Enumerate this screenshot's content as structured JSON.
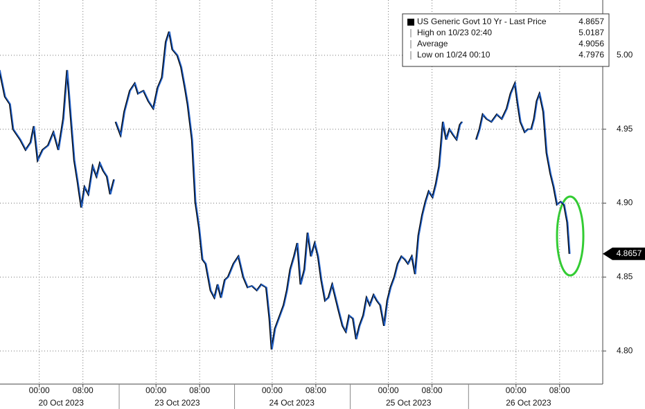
{
  "chart_data": {
    "type": "line",
    "x": [
      0,
      1.0,
      1.9,
      2.5,
      3.8,
      4.8,
      5.7,
      6.3,
      7.0,
      7.9,
      8.9,
      9.9,
      10.8,
      11.7,
      12.4,
      13.1,
      13.7,
      14.3,
      15.0,
      15.6,
      16.3,
      17.1,
      17.8,
      18.4,
      19.0,
      19.7,
      20.3,
      21.0,
      21.2,
      21.3,
      22.2,
      22.9,
      23.9,
      24.8,
      25.4,
      26.4,
      27.3,
      28.2,
      29.0,
      29.8,
      30.5,
      31.1,
      31.7,
      32.6,
      33.3,
      34.0,
      34.5,
      35.3,
      35.9,
      36.6,
      37.2,
      37.8,
      38.7,
      39.4,
      40.0,
      40.6,
      41.3,
      41.9,
      42.9,
      43.8,
      44.7,
      45.5,
      46.3,
      47.2,
      48.0,
      48.9,
      49.5,
      49.9,
      50.5,
      51.4,
      52.1,
      52.7,
      53.3,
      54.0,
      54.6,
      55.2,
      55.9,
      56.5,
      57.1,
      57.8,
      58.4,
      59.0,
      59.7,
      60.3,
      61.0,
      61.6,
      62.2,
      62.9,
      63.5,
      64.1,
      64.8,
      65.4,
      66.0,
      66.7,
      67.3,
      67.9,
      68.6,
      69.2,
      69.8,
      70.5,
      71.1,
      71.7,
      72.4,
      73.0,
      73.7,
      74.3,
      74.9,
      75.6,
      76.2,
      76.8,
      77.5,
      78.1,
      78.7,
      79.4,
      80.0,
      80.6,
      81.3,
      81.9,
      82.5,
      83.2,
      83.8,
      84.4,
      84.8,
      85.5,
      87.4,
      88.0,
      88.6,
      89.3,
      90.2,
      91.2,
      92.1,
      93.0,
      93.7,
      94.5,
      95.0,
      95.5,
      96.3,
      96.9,
      97.5,
      98.0,
      98.5,
      99.0,
      99.7,
      100.3,
      101.0,
      101.6,
      102.2,
      102.9,
      103.5,
      104.1,
      104.5
    ],
    "series": [
      {
        "name": "US Generic Govt 10 Yr - Last Price",
        "color": "#2563c9",
        "values": [
          4.99,
          4.972,
          4.967,
          4.95,
          4.943,
          4.936,
          4.941,
          4.952,
          4.929,
          4.936,
          4.939,
          4.948,
          4.936,
          4.957,
          4.99,
          4.957,
          4.929,
          4.915,
          4.897,
          4.911,
          4.906,
          4.925,
          4.918,
          4.927,
          4.922,
          4.918,
          4.906,
          4.916,
          null,
          4.955,
          4.946,
          4.962,
          4.976,
          4.981,
          4.974,
          4.976,
          4.969,
          4.964,
          4.978,
          4.985,
          5.009,
          5.016,
          5.004,
          5.0,
          4.992,
          4.978,
          4.967,
          4.943,
          4.901,
          4.883,
          4.862,
          4.859,
          4.841,
          4.836,
          4.845,
          4.836,
          4.848,
          4.85,
          4.859,
          4.864,
          4.85,
          4.843,
          4.844,
          4.841,
          4.845,
          4.843,
          4.822,
          4.801,
          4.815,
          4.824,
          4.831,
          4.841,
          4.855,
          4.864,
          4.873,
          4.845,
          4.855,
          4.88,
          4.864,
          4.873,
          4.864,
          4.848,
          4.834,
          4.836,
          4.845,
          4.836,
          4.827,
          4.817,
          4.813,
          4.824,
          4.822,
          4.808,
          4.817,
          4.824,
          4.836,
          4.831,
          4.838,
          4.834,
          4.831,
          4.817,
          4.834,
          4.843,
          4.85,
          4.859,
          4.864,
          4.862,
          4.859,
          4.864,
          4.852,
          4.878,
          4.892,
          4.901,
          4.908,
          4.904,
          4.913,
          4.925,
          4.955,
          4.943,
          4.95,
          4.946,
          4.943,
          4.953,
          4.955,
          null,
          4.943,
          4.95,
          4.96,
          4.957,
          4.955,
          4.96,
          4.957,
          4.964,
          4.974,
          4.981,
          4.967,
          4.955,
          4.948,
          4.95,
          4.95,
          4.957,
          4.969,
          4.974,
          4.962,
          4.934,
          4.92,
          4.911,
          4.899,
          4.901,
          4.899,
          4.887,
          4.8657
        ]
      }
    ],
    "legend": [
      {
        "label": "US Generic Govt 10 Yr - Last Price",
        "value": 4.8657
      },
      {
        "label": "High on 10/23 02:40",
        "value": 5.0187
      },
      {
        "label": "Average",
        "value": 4.9056
      },
      {
        "label": "Low on 10/24 00:10",
        "value": 4.7976
      }
    ],
    "xlim": [
      0,
      110.5
    ],
    "xticks": [
      {
        "value": 7.2,
        "label": "00:00"
      },
      {
        "value": 15.2,
        "label": "08:00"
      },
      {
        "value": 28.6,
        "label": "00:00"
      },
      {
        "value": 36.6,
        "label": "08:00"
      },
      {
        "value": 49.9,
        "label": "00:00"
      },
      {
        "value": 57.9,
        "label": "08:00"
      },
      {
        "value": 71.2,
        "label": "00:00"
      },
      {
        "value": 79.2,
        "label": "08:00"
      },
      {
        "value": 94.6,
        "label": "00:00"
      },
      {
        "value": 102.6,
        "label": "08:00"
      }
    ],
    "date_labels": [
      {
        "value": 11.2,
        "label": "20 Oct 2023"
      },
      {
        "value": 32.5,
        "label": "23 Oct 2023"
      },
      {
        "value": 53.5,
        "label": "24 Oct 2023"
      },
      {
        "value": 74.9,
        "label": "25 Oct 2023"
      },
      {
        "value": 96.9,
        "label": "26 Oct 2023"
      }
    ],
    "ylim": [
      4.7776,
      5.0374
    ],
    "yticks": [
      {
        "value": 4.8,
        "label": "4.80"
      },
      {
        "value": 4.85,
        "label": "4.85"
      },
      {
        "value": 4.9,
        "label": "4.90"
      },
      {
        "value": 4.95,
        "label": "4.95"
      },
      {
        "value": 5.0,
        "label": "5.00"
      }
    ],
    "grid": true
  }
}
